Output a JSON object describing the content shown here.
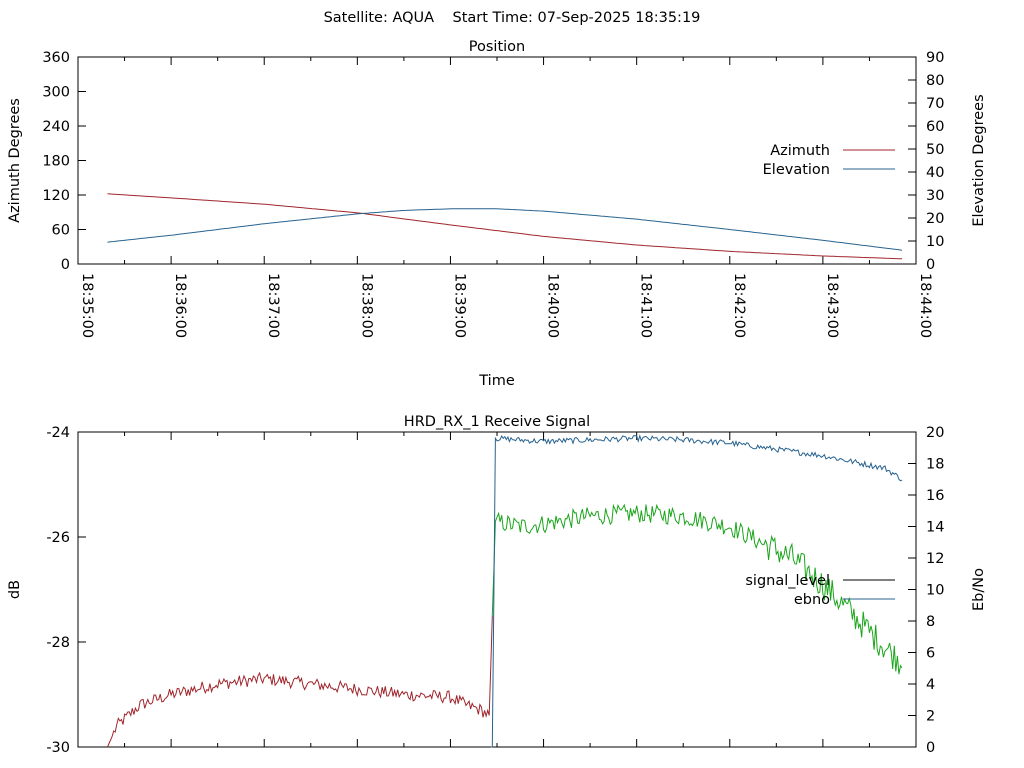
{
  "header": {
    "title": "Satellite: AQUA    Start Time: 07-Sep-2025 18:35:19"
  },
  "colors": {
    "azimuth": "#a0252c",
    "elevation": "#27628f",
    "signal_low": "#a0252c",
    "signal_high": "#1aa51a",
    "ebno": "#27628f",
    "signal_legend": "#000000"
  },
  "chart_data": [
    {
      "type": "line",
      "title": "Position",
      "xlabel": "Time",
      "ylabel": "Azimuth Degrees",
      "y2label": "Elevation Degrees",
      "xticks": [
        "18:35:00",
        "18:36:00",
        "18:37:00",
        "18:38:00",
        "18:39:00",
        "18:40:00",
        "18:41:00",
        "18:42:00",
        "18:43:00",
        "18:44:00"
      ],
      "xlim": [
        "18:35:00",
        "18:44:00"
      ],
      "ylim": [
        0,
        360
      ],
      "y2lim": [
        0,
        90
      ],
      "yticks": [
        0,
        60,
        120,
        180,
        240,
        300,
        360
      ],
      "y2ticks": [
        0,
        10,
        20,
        30,
        40,
        50,
        60,
        70,
        80,
        90
      ],
      "legend_position": "right",
      "series": [
        {
          "name": "Azimuth",
          "axis": "left",
          "x": [
            "18:35:19",
            "18:36:00",
            "18:37:00",
            "18:38:00",
            "18:39:00",
            "18:40:00",
            "18:41:00",
            "18:42:00",
            "18:43:00",
            "18:43:51"
          ],
          "values": [
            122,
            115,
            104,
            89,
            68,
            48,
            33,
            22,
            14,
            9
          ]
        },
        {
          "name": "Elevation",
          "axis": "right",
          "x": [
            "18:35:19",
            "18:36:00",
            "18:37:00",
            "18:38:00",
            "18:38:30",
            "18:39:00",
            "18:39:30",
            "18:40:00",
            "18:41:00",
            "18:42:00",
            "18:43:00",
            "18:43:51"
          ],
          "values": [
            9.5,
            12.5,
            17.5,
            21.8,
            23.3,
            24.0,
            24.0,
            23.0,
            19.5,
            15.0,
            10.3,
            6.0
          ]
        }
      ]
    },
    {
      "type": "line",
      "title": "HRD_RX_1 Receive Signal",
      "ylabel": "dB",
      "y2label": "Eb/No",
      "ylim": [
        -30,
        -24
      ],
      "y2lim": [
        0,
        20
      ],
      "yticks": [
        -30,
        -28,
        -26,
        -24
      ],
      "y2ticks": [
        0,
        2,
        4,
        6,
        8,
        10,
        12,
        14,
        16,
        18,
        20
      ],
      "xlim": [
        "18:35:00",
        "18:44:00"
      ],
      "legend_position": "right",
      "series": [
        {
          "name": "signal_level",
          "axis": "left",
          "x": [
            "18:35:19",
            "18:35:25",
            "18:35:40",
            "18:36:00",
            "18:36:30",
            "18:37:00",
            "18:37:30",
            "18:38:00",
            "18:38:30",
            "18:39:00",
            "18:39:10",
            "18:39:20",
            "18:39:25",
            "18:39:27",
            "18:39:29",
            "18:39:45",
            "18:40:00",
            "18:40:30",
            "18:41:00",
            "18:41:30",
            "18:42:00",
            "18:42:20",
            "18:42:40",
            "18:43:00",
            "18:43:20",
            "18:43:40",
            "18:43:51"
          ],
          "values": [
            -30.0,
            -29.6,
            -29.2,
            -29.0,
            -28.8,
            -28.7,
            -28.8,
            -28.9,
            -29.0,
            -29.05,
            -29.2,
            -29.3,
            -29.4,
            -27.5,
            -25.7,
            -25.8,
            -25.75,
            -25.6,
            -25.55,
            -25.6,
            -25.8,
            -26.1,
            -26.4,
            -26.9,
            -27.5,
            -28.1,
            -28.4
          ]
        },
        {
          "name": "ebno",
          "axis": "right",
          "x": [
            "18:35:19",
            "18:39:27",
            "18:39:29",
            "18:40:00",
            "18:40:30",
            "18:41:00",
            "18:41:30",
            "18:42:00",
            "18:42:30",
            "18:43:00",
            "18:43:20",
            "18:43:40",
            "18:43:51"
          ],
          "values": [
            0,
            0,
            19.6,
            19.4,
            19.5,
            19.6,
            19.5,
            19.3,
            18.9,
            18.5,
            18.1,
            17.7,
            17.0
          ]
        }
      ]
    }
  ]
}
